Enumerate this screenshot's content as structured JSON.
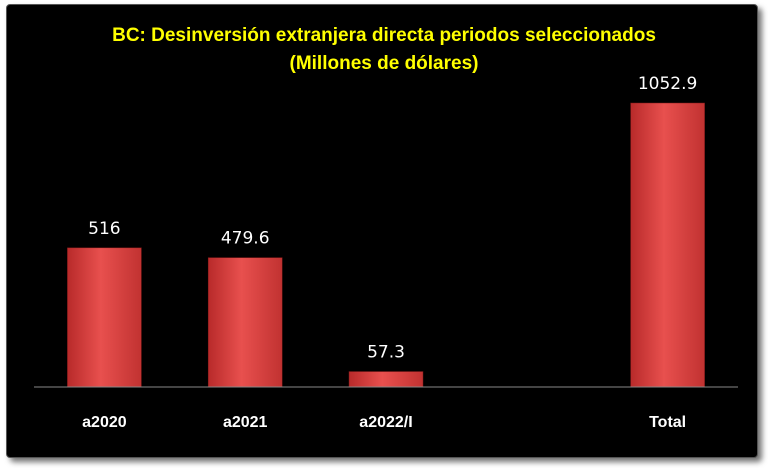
{
  "chart_data": {
    "type": "bar",
    "title": "BC: Desinversión extranjera directa periodos seleccionados",
    "subtitle": "(Millones de dólares)",
    "categories": [
      "a2020",
      "a2021",
      "a2022/I",
      "",
      "Total"
    ],
    "values": [
      516,
      479.6,
      57.3,
      null,
      1052.9
    ],
    "data_labels": [
      "516",
      "479.6",
      "57.3",
      "",
      "1052.9"
    ],
    "ylim": [
      0,
      1100
    ],
    "grid": false,
    "legend": "none",
    "bar_color": "#e0403f",
    "title_color": "#ffff00",
    "background": "#000000"
  }
}
